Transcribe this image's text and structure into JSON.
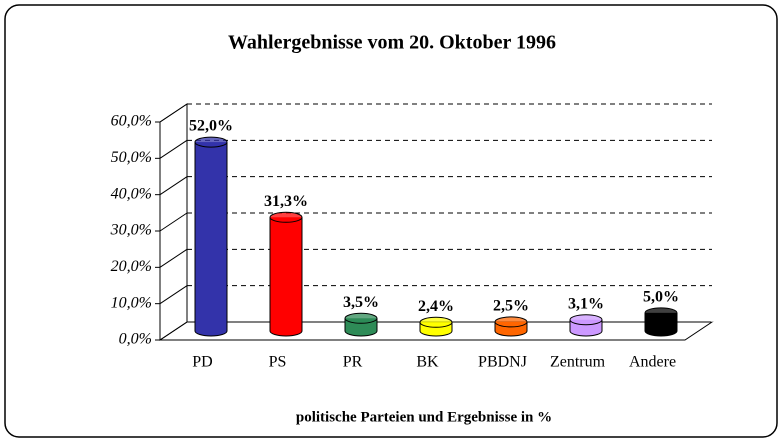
{
  "chart_data": {
    "type": "bar",
    "title": "Wahlergebnisse vom 20. Oktober 1996",
    "x_label": "politische Parteien und Ergebnisse in %",
    "categories": [
      "PD",
      "PS",
      "PR",
      "BK",
      "PBDNJ",
      "Zentrum",
      "Andere"
    ],
    "values": [
      52.0,
      31.3,
      3.5,
      2.4,
      2.5,
      3.1,
      5.0
    ],
    "value_labels": [
      "52,0%",
      "31,3%",
      "3,5%",
      "2,4%",
      "2,5%",
      "3,1%",
      "5,0%"
    ],
    "colors": [
      "#3333aa",
      "#ff0000",
      "#2e8b57",
      "#ffff00",
      "#ff6600",
      "#cc99ff",
      "#000000"
    ],
    "ylim": [
      0,
      60
    ],
    "yticks": [
      {
        "value": 0,
        "label": "0,0%"
      },
      {
        "value": 10,
        "label": "10,0%"
      },
      {
        "value": 20,
        "label": "20,0%"
      },
      {
        "value": 30,
        "label": "30,0%"
      },
      {
        "value": 40,
        "label": "40,0%"
      },
      {
        "value": 50,
        "label": "50,0%"
      },
      {
        "value": 60,
        "label": "60,0%"
      }
    ],
    "grid": true
  }
}
